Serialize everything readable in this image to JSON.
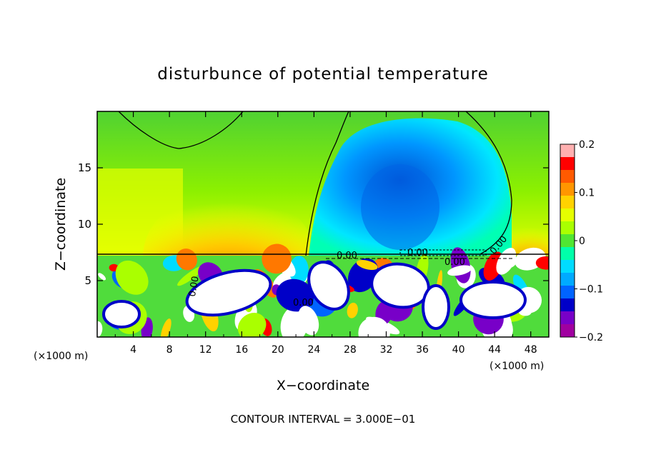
{
  "chart_data": {
    "type": "heatmap",
    "title": "disturbunce of potential temperature",
    "xlabel": "X−coordinate",
    "ylabel": "Z−coordinate",
    "x_unit_left": "(×1000 m)",
    "x_unit_right": "(×1000 m)",
    "xlim": [
      0,
      50
    ],
    "ylim": [
      0,
      20
    ],
    "x_ticks": [
      "4",
      "8",
      "12",
      "16",
      "20",
      "24",
      "28",
      "32",
      "36",
      "40",
      "44",
      "48"
    ],
    "y_ticks": [
      "5",
      "10",
      "15"
    ],
    "colorbar": {
      "range": [
        -0.2,
        0.2
      ],
      "tick_labels": [
        "0.2",
        "0.1",
        "0",
        "−0.1",
        "−0.2"
      ],
      "colors": [
        "#ffb0b0",
        "#ff0000",
        "#ff5a00",
        "#ff9600",
        "#ffd200",
        "#e6ff00",
        "#aaff00",
        "#50e632",
        "#00ffaa",
        "#00dcff",
        "#00aaff",
        "#0064ff",
        "#0000c8",
        "#7800c8",
        "#a000a0"
      ]
    },
    "contour_labels": [
      "0.00",
      "0.00",
      "0.00",
      "0.00",
      "0.00",
      "0.00"
    ],
    "footer": "CONTOUR INTERVAL = 3.000E−01"
  }
}
